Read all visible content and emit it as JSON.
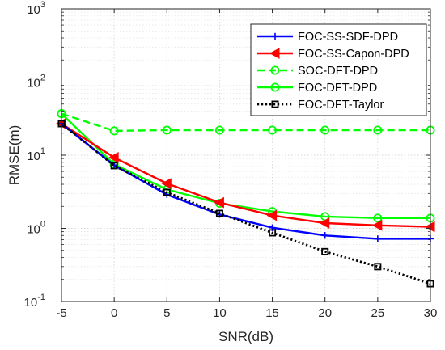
{
  "chart_data": {
    "type": "line",
    "title": "",
    "xlabel": "SNR(dB)",
    "ylabel": "RMSE(m)",
    "x_scale": "linear",
    "y_scale": "log",
    "xlim": [
      -5,
      30
    ],
    "ylim": [
      0.1,
      1000
    ],
    "x_ticks": [
      -5,
      0,
      5,
      10,
      15,
      20,
      25,
      30
    ],
    "x_tick_labels": [
      "-5",
      "0",
      "5",
      "10",
      "15",
      "20",
      "25",
      "30"
    ],
    "y_tick_labels": [
      {
        "value": 0.1,
        "base": "10",
        "exp": "-1"
      },
      {
        "value": 1,
        "base": "10",
        "exp": "0"
      },
      {
        "value": 10,
        "base": "10",
        "exp": "1"
      },
      {
        "value": 100,
        "base": "10",
        "exp": "2"
      },
      {
        "value": 1000,
        "base": "10",
        "exp": "3"
      }
    ],
    "grid": true,
    "minor_grid": true,
    "legend_position": "top-right",
    "x": [
      -5,
      0,
      5,
      10,
      15,
      20,
      25,
      30
    ],
    "series": [
      {
        "name": "FOC-SS-SDF-DPD",
        "values": [
          27,
          7.3,
          2.9,
          1.55,
          1.02,
          0.8,
          0.72,
          0.72
        ],
        "color": "#0000ff",
        "line": "solid",
        "marker": "plus"
      },
      {
        "name": "FOC-SS-Capon-DPD",
        "values": [
          27,
          9.3,
          4.1,
          2.25,
          1.5,
          1.18,
          1.1,
          1.05
        ],
        "color": "#ff0000",
        "line": "solid",
        "marker": "triangle-left"
      },
      {
        "name": "SOC-DFT-DPD",
        "values": [
          37,
          21.5,
          22,
          22,
          22,
          22,
          22,
          22
        ],
        "color": "#00ff00",
        "line": "dashed",
        "marker": "circle"
      },
      {
        "name": "FOC-DFT-DPD",
        "values": [
          37,
          7.5,
          3.4,
          2.2,
          1.7,
          1.45,
          1.38,
          1.38
        ],
        "color": "#00ff00",
        "line": "solid",
        "marker": "circle"
      },
      {
        "name": "FOC-DFT-Taylor",
        "values": [
          27,
          7.2,
          3.1,
          1.6,
          0.87,
          0.48,
          0.3,
          0.175
        ],
        "color": "#000000",
        "line": "dotted",
        "marker": "square"
      }
    ]
  }
}
